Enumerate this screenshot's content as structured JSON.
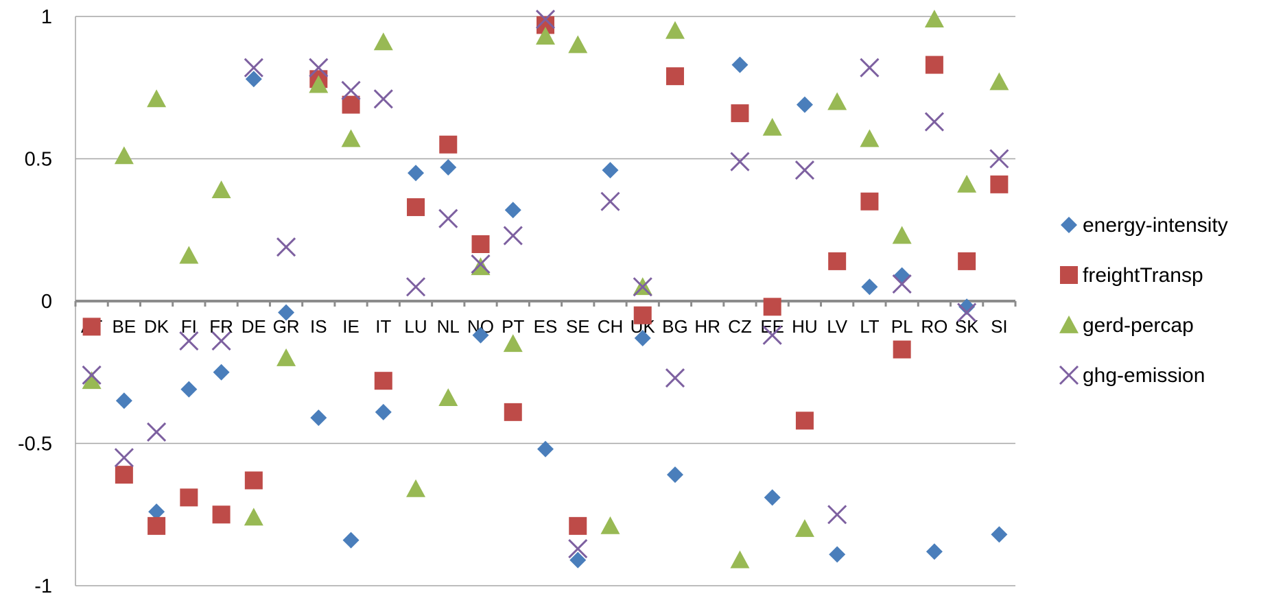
{
  "chart_data": {
    "type": "scatter",
    "categories": [
      "AT",
      "BE",
      "DK",
      "FI",
      "FR",
      "DE",
      "GR",
      "IS",
      "IE",
      "IT",
      "LU",
      "NL",
      "NO",
      "PT",
      "ES",
      "SE",
      "CH",
      "UK",
      "BG",
      "HR",
      "CZ",
      "EE",
      "HU",
      "LV",
      "LT",
      "PL",
      "RO",
      "SK",
      "SI"
    ],
    "ylim": [
      -1,
      1
    ],
    "yticks": [
      1,
      0.5,
      0,
      -0.5,
      -1
    ],
    "ytick_labels": [
      "1",
      "0.5",
      "0",
      "-0.5",
      "-1"
    ],
    "grid": true,
    "legend_position": "right",
    "series": [
      {
        "name": "energy-intensity",
        "marker": "diamond",
        "color": "#4a7ebb",
        "values": [
          null,
          -0.35,
          -0.74,
          -0.31,
          -0.25,
          0.78,
          -0.04,
          -0.41,
          -0.84,
          -0.39,
          0.45,
          0.47,
          -0.12,
          0.32,
          -0.52,
          -0.91,
          0.46,
          -0.13,
          -0.61,
          null,
          0.83,
          -0.69,
          0.69,
          -0.89,
          0.05,
          0.09,
          -0.88,
          -0.02,
          -0.82
        ]
      },
      {
        "name": "freightTransp",
        "marker": "square",
        "color": "#be4b48",
        "values": [
          -0.09,
          -0.61,
          -0.79,
          -0.69,
          -0.75,
          -0.63,
          null,
          0.78,
          0.69,
          -0.28,
          0.33,
          0.55,
          0.2,
          -0.39,
          0.97,
          -0.79,
          null,
          -0.05,
          0.79,
          null,
          0.66,
          -0.02,
          -0.42,
          0.14,
          0.35,
          -0.17,
          0.83,
          0.14,
          0.41
        ]
      },
      {
        "name": "gerd-percap",
        "marker": "triangle",
        "color": "#98b954",
        "values": [
          -0.28,
          0.51,
          0.71,
          0.16,
          0.39,
          -0.76,
          -0.2,
          0.76,
          0.57,
          0.91,
          -0.66,
          -0.34,
          0.12,
          -0.15,
          0.93,
          0.9,
          -0.79,
          0.05,
          0.95,
          null,
          -0.91,
          0.61,
          -0.8,
          0.7,
          0.57,
          0.23,
          0.99,
          0.41,
          0.77
        ]
      },
      {
        "name": "ghg-emission",
        "marker": "x",
        "color": "#7d60a0",
        "values": [
          -0.26,
          -0.55,
          -0.46,
          -0.14,
          -0.14,
          0.82,
          0.19,
          0.82,
          0.74,
          0.71,
          0.05,
          0.29,
          0.13,
          0.23,
          0.99,
          -0.87,
          0.35,
          0.05,
          -0.27,
          null,
          0.49,
          -0.12,
          0.46,
          -0.75,
          0.82,
          0.06,
          0.63,
          -0.04,
          0.5
        ]
      }
    ]
  }
}
